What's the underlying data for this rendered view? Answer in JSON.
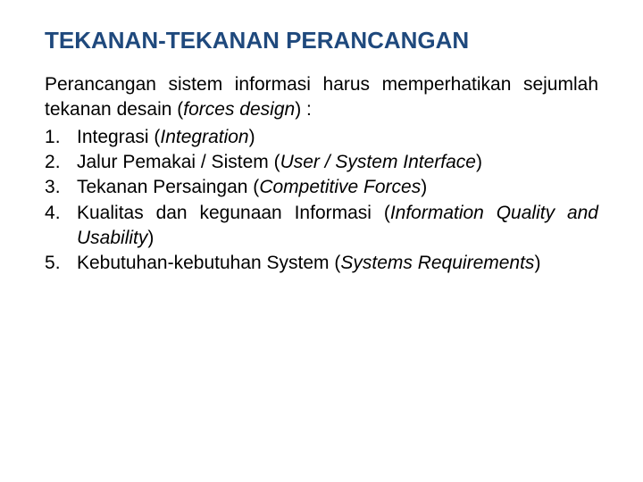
{
  "title": "TEKANAN-TEKANAN PERANCANGAN",
  "intro_part1": "Perancangan sistem informasi harus memperhatikan sejumlah tekanan desain (",
  "intro_italic": "forces design",
  "intro_part2": ") :",
  "items": [
    {
      "text_before": "Integrasi (",
      "text_italic": "Integration",
      "text_after": ")"
    },
    {
      "text_before": "Jalur Pemakai / Sistem (",
      "text_italic": "User / System Interface",
      "text_after": ")"
    },
    {
      "text_before": "Tekanan Persaingan (",
      "text_italic": "Competitive Forces",
      "text_after": ")"
    },
    {
      "text_before": "Kualitas dan kegunaan Informasi (",
      "text_italic": "Information Quality and Usability",
      "text_after": ")"
    },
    {
      "text_before": "Kebutuhan-kebutuhan System (",
      "text_italic": "Systems Requirements",
      "text_after": ")"
    }
  ],
  "colors": {
    "title": "#1f497d",
    "body_text": "#000000",
    "background": "#ffffff"
  },
  "typography": {
    "title_fontsize": 26,
    "body_fontsize": 21,
    "title_weight": "bold",
    "font_family": "Verdana"
  }
}
